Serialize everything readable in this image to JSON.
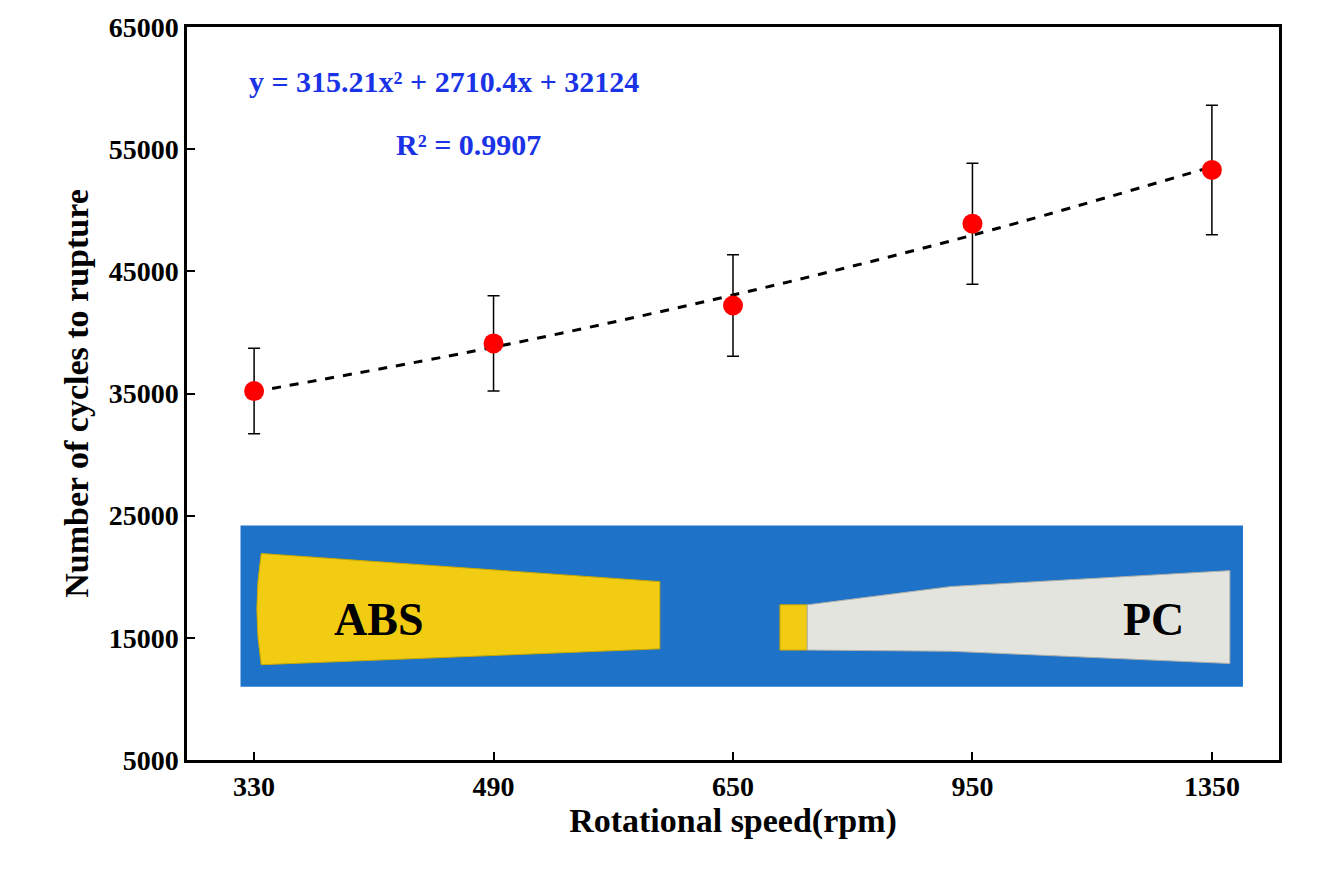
{
  "chart_data": {
    "type": "scatter",
    "x_label": "Rotational speed(rpm)",
    "y_label": "Number of cycles to rupture",
    "categories": [
      "330",
      "490",
      "650",
      "950",
      "1350"
    ],
    "series": [
      {
        "type": "scatter",
        "color": "#ff0000",
        "marker": "circle",
        "values": [
          35200,
          39100,
          42200,
          48900,
          53300
        ],
        "errors": [
          3500,
          3900,
          4150,
          4950,
          5300
        ]
      },
      {
        "type": "line",
        "color": "#000000",
        "line_style": "dash",
        "values": [
          35150,
          38790,
          43060,
          47960,
          53560
        ]
      }
    ],
    "ylim": [
      5000,
      65000
    ],
    "yticks": [
      5000,
      15000,
      25000,
      35000,
      45000,
      55000,
      65000
    ],
    "grid": false,
    "annotations": [
      "y = 315.21x² + 2710.4x + 32124",
      "R² = 0.9907",
      "ABS",
      "PC"
    ]
  }
}
